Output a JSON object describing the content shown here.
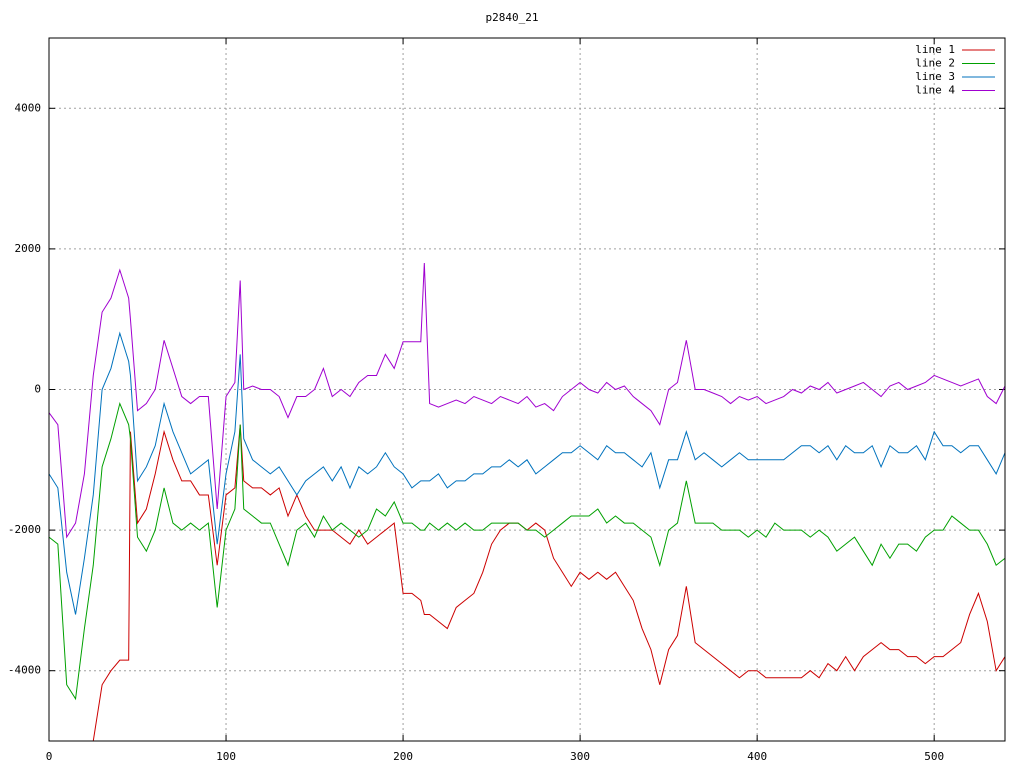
{
  "chart_data": {
    "type": "line",
    "title": "p2840_21",
    "x": [
      0,
      5,
      10,
      15,
      20,
      25,
      30,
      35,
      40,
      45,
      46,
      50,
      55,
      60,
      65,
      70,
      75,
      80,
      85,
      90,
      95,
      100,
      105,
      108,
      110,
      115,
      120,
      125,
      130,
      135,
      140,
      145,
      150,
      155,
      160,
      165,
      170,
      175,
      180,
      185,
      190,
      195,
      200,
      205,
      210,
      212,
      215,
      220,
      225,
      230,
      235,
      240,
      245,
      250,
      255,
      260,
      265,
      270,
      275,
      280,
      285,
      290,
      295,
      300,
      305,
      310,
      315,
      320,
      325,
      330,
      335,
      340,
      345,
      350,
      355,
      360,
      365,
      370,
      375,
      380,
      385,
      390,
      395,
      400,
      405,
      410,
      415,
      420,
      425,
      430,
      435,
      440,
      445,
      450,
      455,
      460,
      465,
      470,
      475,
      480,
      485,
      490,
      495,
      500,
      505,
      510,
      515,
      520,
      525,
      530,
      535,
      540
    ],
    "series": [
      {
        "name": "line 1",
        "color": "#cc0000",
        "values": [
          null,
          null,
          null,
          null,
          null,
          -5000,
          -4200,
          -4000,
          -3850,
          -3850,
          -600,
          -1900,
          -1700,
          -1200,
          -600,
          -1000,
          -1300,
          -1300,
          -1500,
          -1500,
          -2500,
          -1500,
          -1400,
          -500,
          -1300,
          -1400,
          -1400,
          -1500,
          -1400,
          -1800,
          -1500,
          -1800,
          -2000,
          -2000,
          -2000,
          -2100,
          -2200,
          -2000,
          -2200,
          -2100,
          -2000,
          -1900,
          -2900,
          -2900,
          -3000,
          -3200,
          -3200,
          -3300,
          -3400,
          -3100,
          -3000,
          -2900,
          -2600,
          -2200,
          -2000,
          -1900,
          -1900,
          -2000,
          -1900,
          -2000,
          -2400,
          -2600,
          -2800,
          -2600,
          -2700,
          -2600,
          -2700,
          -2600,
          -2800,
          -3000,
          -3400,
          -3700,
          -4200,
          -3700,
          -3500,
          -2800,
          -3600,
          -3700,
          -3800,
          -3900,
          -4000,
          -4100,
          -4000,
          -4000,
          -4100,
          -4100,
          -4100,
          -4100,
          -4100,
          -4000,
          -4100,
          -3900,
          -4000,
          -3800,
          -4000,
          -3800,
          -3700,
          -3600,
          -3700,
          -3700,
          -3800,
          -3800,
          -3900,
          -3800,
          -3800,
          -3700,
          -3600,
          -3200,
          -2900,
          -3300,
          -4000,
          -3800
        ]
      },
      {
        "name": "line 2",
        "color": "#00a000",
        "values": [
          -2100,
          -2200,
          -4200,
          -4400,
          -3400,
          -2500,
          -1100,
          -700,
          -200,
          -500,
          -700,
          -2100,
          -2300,
          -2000,
          -1400,
          -1900,
          -2000,
          -1900,
          -2000,
          -1900,
          -3100,
          -2000,
          -1700,
          -500,
          -1700,
          -1800,
          -1900,
          -1900,
          -2200,
          -2500,
          -2000,
          -1900,
          -2100,
          -1800,
          -2000,
          -1900,
          -2000,
          -2100,
          -2000,
          -1700,
          -1800,
          -1600,
          -1900,
          -1900,
          -2000,
          -2000,
          -1900,
          -2000,
          -1900,
          -2000,
          -1900,
          -2000,
          -2000,
          -1900,
          -1900,
          -1900,
          -1900,
          -2000,
          -2000,
          -2100,
          -2000,
          -1900,
          -1800,
          -1800,
          -1800,
          -1700,
          -1900,
          -1800,
          -1900,
          -1900,
          -2000,
          -2100,
          -2500,
          -2000,
          -1900,
          -1300,
          -1900,
          -1900,
          -1900,
          -2000,
          -2000,
          -2000,
          -2100,
          -2000,
          -2100,
          -1900,
          -2000,
          -2000,
          -2000,
          -2100,
          -2000,
          -2100,
          -2300,
          -2200,
          -2100,
          -2300,
          -2500,
          -2200,
          -2400,
          -2200,
          -2200,
          -2300,
          -2100,
          -2000,
          -2000,
          -1800,
          -1900,
          -2000,
          -2000,
          -2200,
          -2500,
          -2400
        ]
      },
      {
        "name": "line 3",
        "color": "#0072bd",
        "values": [
          -1200,
          -1400,
          -2600,
          -3200,
          -2400,
          -1500,
          0,
          300,
          800,
          400,
          200,
          -1300,
          -1100,
          -800,
          -200,
          -600,
          -900,
          -1200,
          -1100,
          -1000,
          -2200,
          -1200,
          -600,
          500,
          -700,
          -1000,
          -1100,
          -1200,
          -1100,
          -1300,
          -1500,
          -1300,
          -1200,
          -1100,
          -1300,
          -1100,
          -1400,
          -1100,
          -1200,
          -1100,
          -900,
          -1100,
          -1200,
          -1400,
          -1300,
          -1300,
          -1300,
          -1200,
          -1400,
          -1300,
          -1300,
          -1200,
          -1200,
          -1100,
          -1100,
          -1000,
          -1100,
          -1000,
          -1200,
          -1100,
          -1000,
          -900,
          -900,
          -800,
          -900,
          -1000,
          -800,
          -900,
          -900,
          -1000,
          -1100,
          -900,
          -1400,
          -1000,
          -1000,
          -600,
          -1000,
          -900,
          -1000,
          -1100,
          -1000,
          -900,
          -1000,
          -1000,
          -1000,
          -1000,
          -1000,
          -900,
          -800,
          -800,
          -900,
          -800,
          -1000,
          -800,
          -900,
          -900,
          -800,
          -1100,
          -800,
          -900,
          -900,
          -800,
          -1000,
          -600,
          -800,
          -800,
          -900,
          -800,
          -800,
          -1000,
          -1200,
          -900
        ]
      },
      {
        "name": "line 4",
        "color": "#a000d0",
        "values": [
          -330,
          -500,
          -2100,
          -1900,
          -1200,
          200,
          1100,
          1300,
          1700,
          1300,
          1000,
          -300,
          -200,
          0,
          700,
          300,
          -100,
          -200,
          -100,
          -100,
          -1700,
          -100,
          100,
          1550,
          0,
          50,
          0,
          0,
          -100,
          -400,
          -100,
          -100,
          0,
          300,
          -100,
          0,
          -100,
          100,
          200,
          200,
          500,
          300,
          680,
          680,
          680,
          1800,
          -200,
          -250,
          -200,
          -150,
          -200,
          -100,
          -150,
          -200,
          -100,
          -150,
          -200,
          -100,
          -250,
          -200,
          -300,
          -100,
          0,
          100,
          0,
          -50,
          100,
          0,
          50,
          -100,
          -200,
          -300,
          -500,
          0,
          100,
          700,
          0,
          0,
          -50,
          -100,
          -200,
          -100,
          -150,
          -100,
          -200,
          -150,
          -100,
          0,
          -50,
          50,
          0,
          100,
          -50,
          0,
          50,
          100,
          0,
          -100,
          50,
          100,
          0,
          50,
          100,
          200,
          150,
          100,
          50,
          100,
          150,
          -100,
          -200,
          50
        ]
      }
    ],
    "xlim": [
      0,
      540
    ],
    "ylim": [
      -5000,
      5000
    ],
    "xticks": [
      0,
      100,
      200,
      300,
      400,
      500
    ],
    "yticks": [
      -4000,
      -2000,
      0,
      2000,
      4000
    ],
    "grid": true,
    "legend": "top right"
  }
}
